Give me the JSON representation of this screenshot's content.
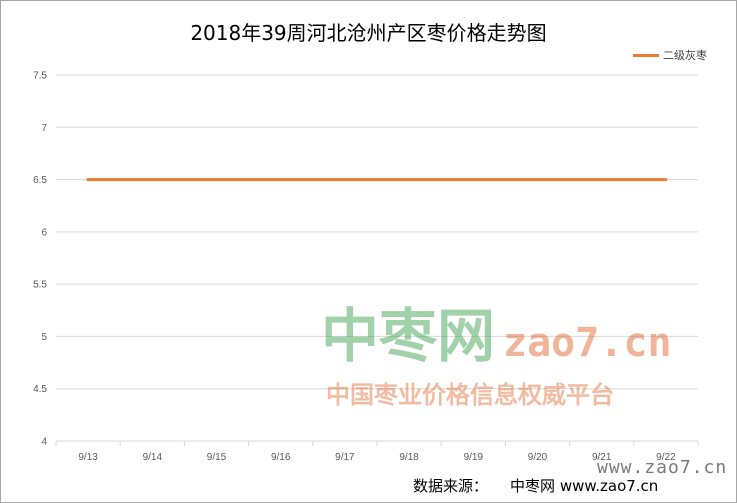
{
  "chart_data": {
    "type": "line",
    "title": "2018年39周河北沧州产区枣价格走势图",
    "categories": [
      "9/13",
      "9/14",
      "9/15",
      "9/16",
      "9/17",
      "9/18",
      "9/19",
      "9/20",
      "9/21",
      "9/22"
    ],
    "series": [
      {
        "name": "二级灰枣",
        "color": "#ED7D31",
        "values": [
          6.5,
          6.5,
          6.5,
          6.5,
          6.5,
          6.5,
          6.5,
          6.5,
          6.5,
          6.5
        ]
      }
    ],
    "ylim": [
      4,
      7.5
    ],
    "yticks": [
      "4",
      "4.5",
      "5",
      "5.5",
      "6",
      "6.5",
      "7",
      "7.5"
    ],
    "xlabel": "",
    "ylabel": "",
    "grid": true,
    "legend": "top-right"
  },
  "watermark": {
    "logo_text": "中枣网",
    "site": "zao7.cn",
    "slogan": "中国枣业价格信息权威平台",
    "corner_site": "www.zao7.cn"
  },
  "source": {
    "label": "数据来源：",
    "name": "中枣网",
    "url": "www.zao7.cn"
  }
}
